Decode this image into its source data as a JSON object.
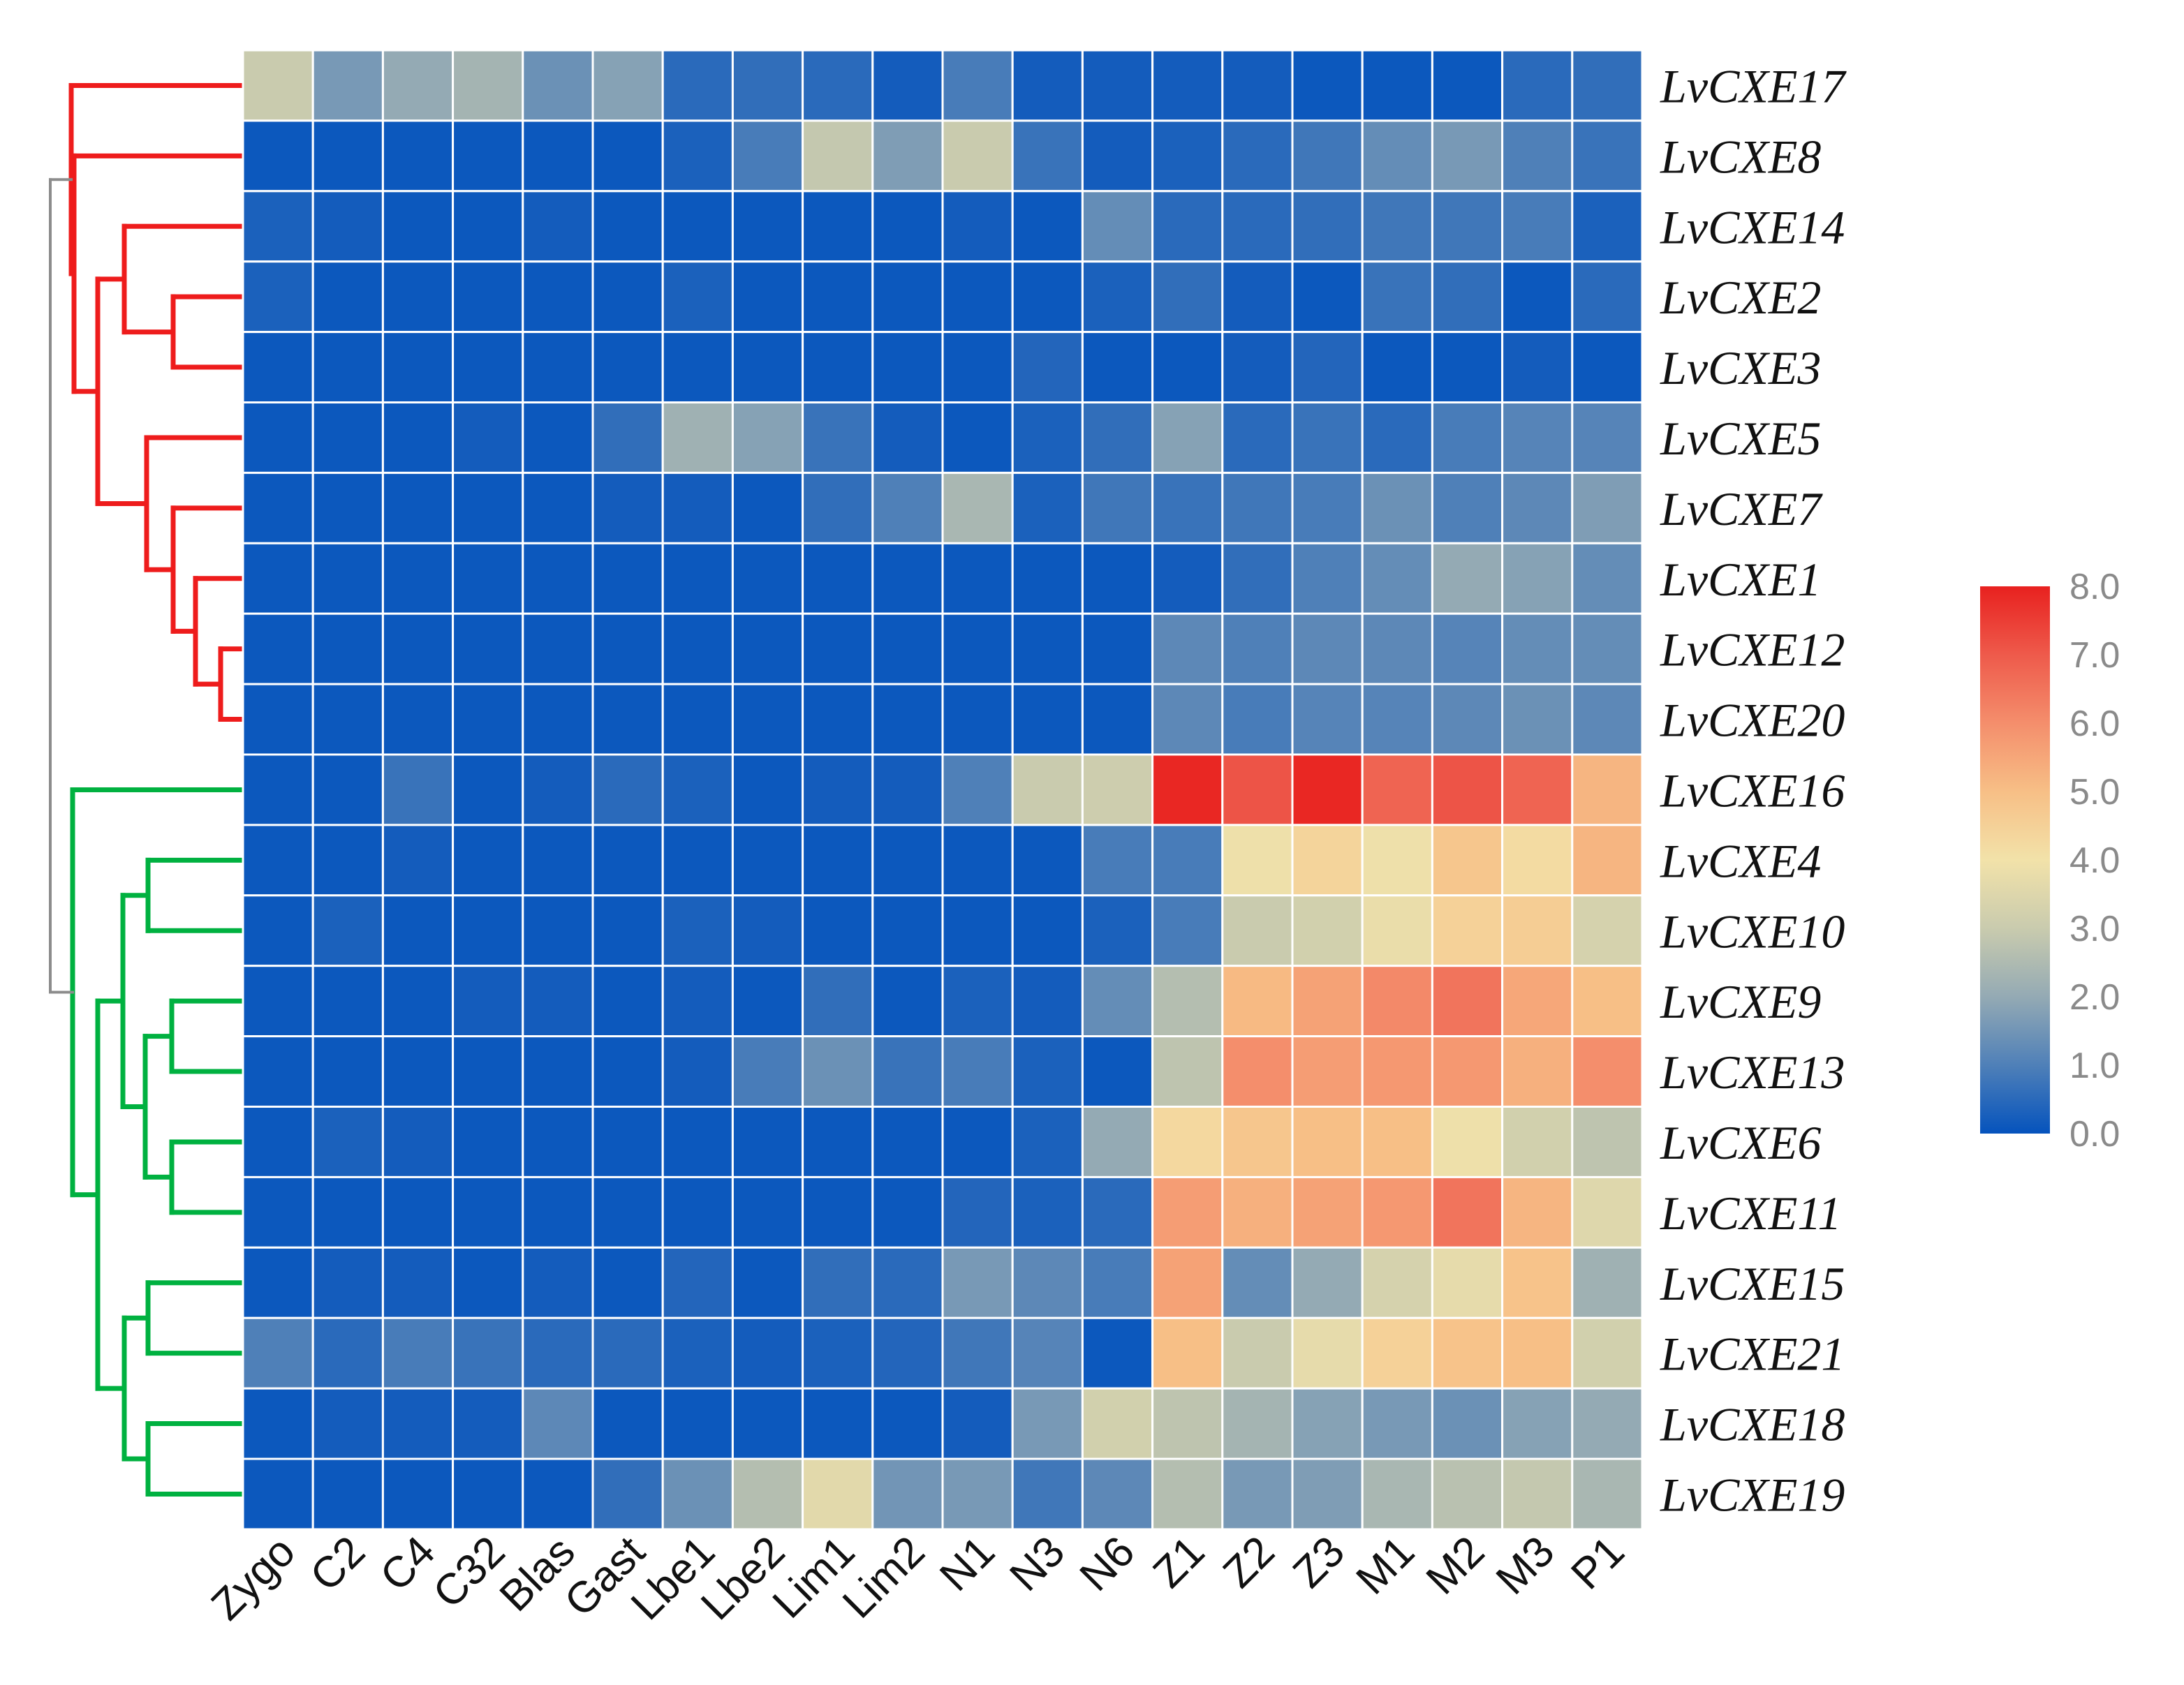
{
  "chart_data": {
    "type": "heatmap",
    "title": "",
    "columns": [
      "Zygo",
      "C2",
      "C4",
      "C32",
      "Blas",
      "Gast",
      "Lbe1",
      "Lbe2",
      "Lim1",
      "Lim2",
      "N1",
      "N3",
      "N6",
      "Z1",
      "Z2",
      "Z3",
      "M1",
      "M2",
      "M3",
      "P1"
    ],
    "rows": [
      "LvCXE17",
      "LvCXE8",
      "LvCXE14",
      "LvCXE2",
      "LvCXE3",
      "LvCXE5",
      "LvCXE7",
      "LvCXE1",
      "LvCXE12",
      "LvCXE20",
      "LvCXE16",
      "LvCXE4",
      "LvCXE10",
      "LvCXE9",
      "LvCXE13",
      "LvCXE6",
      "LvCXE11",
      "LvCXE15",
      "LvCXE21",
      "LvCXE18",
      "LvCXE19"
    ],
    "values": [
      [
        3.0,
        1.6,
        2.0,
        2.3,
        1.4,
        1.8,
        0.5,
        0.6,
        0.5,
        0.2,
        0.9,
        0.2,
        0.2,
        0.2,
        0.2,
        0.1,
        0.1,
        0.1,
        0.5,
        0.6
      ],
      [
        0.1,
        0.1,
        0.1,
        0.1,
        0.1,
        0.1,
        0.3,
        0.9,
        2.9,
        1.7,
        3.0,
        0.7,
        0.2,
        0.3,
        0.5,
        0.8,
        1.3,
        1.6,
        1.0,
        0.7
      ],
      [
        0.3,
        0.2,
        0.1,
        0.1,
        0.2,
        0.1,
        0.1,
        0.1,
        0.1,
        0.1,
        0.2,
        0.1,
        1.3,
        0.5,
        0.5,
        0.6,
        0.8,
        0.8,
        0.9,
        0.3
      ],
      [
        0.3,
        0.1,
        0.1,
        0.1,
        0.1,
        0.1,
        0.3,
        0.1,
        0.1,
        0.1,
        0.1,
        0.1,
        0.3,
        0.6,
        0.2,
        0.1,
        0.7,
        0.6,
        0.1,
        0.5
      ],
      [
        0.1,
        0.1,
        0.1,
        0.1,
        0.1,
        0.1,
        0.1,
        0.1,
        0.1,
        0.1,
        0.1,
        0.4,
        0.1,
        0.1,
        0.2,
        0.4,
        0.1,
        0.1,
        0.2,
        0.1
      ],
      [
        0.1,
        0.1,
        0.1,
        0.2,
        0.1,
        0.6,
        2.2,
        1.8,
        0.7,
        0.2,
        0.1,
        0.3,
        0.6,
        1.8,
        0.5,
        0.7,
        0.5,
        0.9,
        1.1,
        1.1
      ],
      [
        0.1,
        0.1,
        0.1,
        0.1,
        0.1,
        0.2,
        0.2,
        0.1,
        0.6,
        1.0,
        2.4,
        0.3,
        0.8,
        0.7,
        0.8,
        0.9,
        1.4,
        1.0,
        1.2,
        1.7
      ],
      [
        0.1,
        0.1,
        0.1,
        0.1,
        0.1,
        0.1,
        0.1,
        0.1,
        0.1,
        0.1,
        0.1,
        0.1,
        0.1,
        0.2,
        0.6,
        1.0,
        1.3,
        2.0,
        1.8,
        1.3
      ],
      [
        0.1,
        0.1,
        0.1,
        0.1,
        0.1,
        0.1,
        0.1,
        0.1,
        0.1,
        0.1,
        0.1,
        0.1,
        0.1,
        1.2,
        1.0,
        1.2,
        1.2,
        1.1,
        1.3,
        1.3
      ],
      [
        0.1,
        0.1,
        0.1,
        0.1,
        0.1,
        0.1,
        0.1,
        0.1,
        0.1,
        0.1,
        0.1,
        0.1,
        0.1,
        1.2,
        0.9,
        1.1,
        1.1,
        1.2,
        1.4,
        1.2
      ],
      [
        0.1,
        0.1,
        0.7,
        0.1,
        0.2,
        0.5,
        0.3,
        0.1,
        0.2,
        0.2,
        1.0,
        3.0,
        3.1,
        7.9,
        7.1,
        7.9,
        6.8,
        7.1,
        6.8,
        5.2
      ],
      [
        0.1,
        0.1,
        0.2,
        0.1,
        0.1,
        0.1,
        0.1,
        0.1,
        0.1,
        0.1,
        0.1,
        0.1,
        0.9,
        0.9,
        3.9,
        4.4,
        3.9,
        4.8,
        4.2,
        5.2
      ],
      [
        0.1,
        0.3,
        0.1,
        0.1,
        0.1,
        0.1,
        0.3,
        0.2,
        0.1,
        0.1,
        0.1,
        0.1,
        0.3,
        0.9,
        3.0,
        3.2,
        3.8,
        4.5,
        4.6,
        3.3
      ],
      [
        0.1,
        0.1,
        0.1,
        0.2,
        0.2,
        0.1,
        0.2,
        0.1,
        0.6,
        0.1,
        0.3,
        0.2,
        1.3,
        2.6,
        5.1,
        5.6,
        6.1,
        6.5,
        5.5,
        5.0
      ],
      [
        0.1,
        0.1,
        0.1,
        0.1,
        0.1,
        0.1,
        0.2,
        0.9,
        1.4,
        0.7,
        0.9,
        0.3,
        0.1,
        2.8,
        6.0,
        5.7,
        5.8,
        5.8,
        5.3,
        6.0
      ],
      [
        0.1,
        0.3,
        0.2,
        0.1,
        0.1,
        0.1,
        0.1,
        0.1,
        0.1,
        0.1,
        0.1,
        0.3,
        2.0,
        4.3,
        4.8,
        5.0,
        5.0,
        3.9,
        3.2,
        2.8
      ],
      [
        0.1,
        0.1,
        0.1,
        0.1,
        0.1,
        0.1,
        0.1,
        0.1,
        0.1,
        0.1,
        0.4,
        0.3,
        0.5,
        5.7,
        5.3,
        5.6,
        5.8,
        6.5,
        5.2,
        3.5
      ],
      [
        0.1,
        0.2,
        0.2,
        0.1,
        0.2,
        0.1,
        0.4,
        0.1,
        0.6,
        0.5,
        1.6,
        1.2,
        0.9,
        5.6,
        1.3,
        2.0,
        3.3,
        3.7,
        4.9,
        2.2
      ],
      [
        1.0,
        0.5,
        0.9,
        0.7,
        0.5,
        0.5,
        0.3,
        0.2,
        0.3,
        0.4,
        0.8,
        1.1,
        0.1,
        5.0,
        3.0,
        3.7,
        4.5,
        4.9,
        5.0,
        3.2
      ],
      [
        0.1,
        0.2,
        0.2,
        0.2,
        1.2,
        0.1,
        0.1,
        0.1,
        0.1,
        0.1,
        0.2,
        1.6,
        3.2,
        2.8,
        2.3,
        1.8,
        1.6,
        1.4,
        1.8,
        2.0
      ],
      [
        0.1,
        0.1,
        0.1,
        0.1,
        0.1,
        0.6,
        1.4,
        2.6,
        3.6,
        1.5,
        1.6,
        0.8,
        1.2,
        2.6,
        1.6,
        1.7,
        2.4,
        2.7,
        2.9,
        2.4
      ]
    ],
    "color_scale": {
      "min": 0.0,
      "max": 8.0,
      "stops": [
        {
          "value": 0.0,
          "color": "#0553bd"
        },
        {
          "value": 1.0,
          "color": "#4f80b8"
        },
        {
          "value": 2.0,
          "color": "#94aab4"
        },
        {
          "value": 3.0,
          "color": "#c9cbae"
        },
        {
          "value": 4.0,
          "color": "#f2e2a9"
        },
        {
          "value": 5.0,
          "color": "#f7bf86"
        },
        {
          "value": 6.0,
          "color": "#f48e6c"
        },
        {
          "value": 7.0,
          "color": "#ee5a4b"
        },
        {
          "value": 8.0,
          "color": "#e8211f"
        }
      ]
    },
    "legend": {
      "position": "right",
      "ticks": [
        "8.0",
        "7.0",
        "6.0",
        "5.0",
        "4.0",
        "3.0",
        "2.0",
        "1.0",
        "0.0"
      ]
    },
    "row_dendrogram": {
      "clusters": [
        {
          "name": "cluster-1",
          "color": "#ee1c1c",
          "rows": [
            "LvCXE17",
            "LvCXE8",
            "LvCXE14",
            "LvCXE2",
            "LvCXE3",
            "LvCXE5",
            "LvCXE7",
            "LvCXE1",
            "LvCXE12",
            "LvCXE20"
          ]
        },
        {
          "name": "cluster-2",
          "color": "#00b140",
          "rows": [
            "LvCXE16",
            "LvCXE4",
            "LvCXE10",
            "LvCXE9",
            "LvCXE13",
            "LvCXE6",
            "LvCXE11",
            "LvCXE15",
            "LvCXE21",
            "LvCXE18",
            "LvCXE19"
          ]
        }
      ],
      "root_color": "#8c8c8c"
    },
    "cell_border_color": "#ffffff"
  }
}
